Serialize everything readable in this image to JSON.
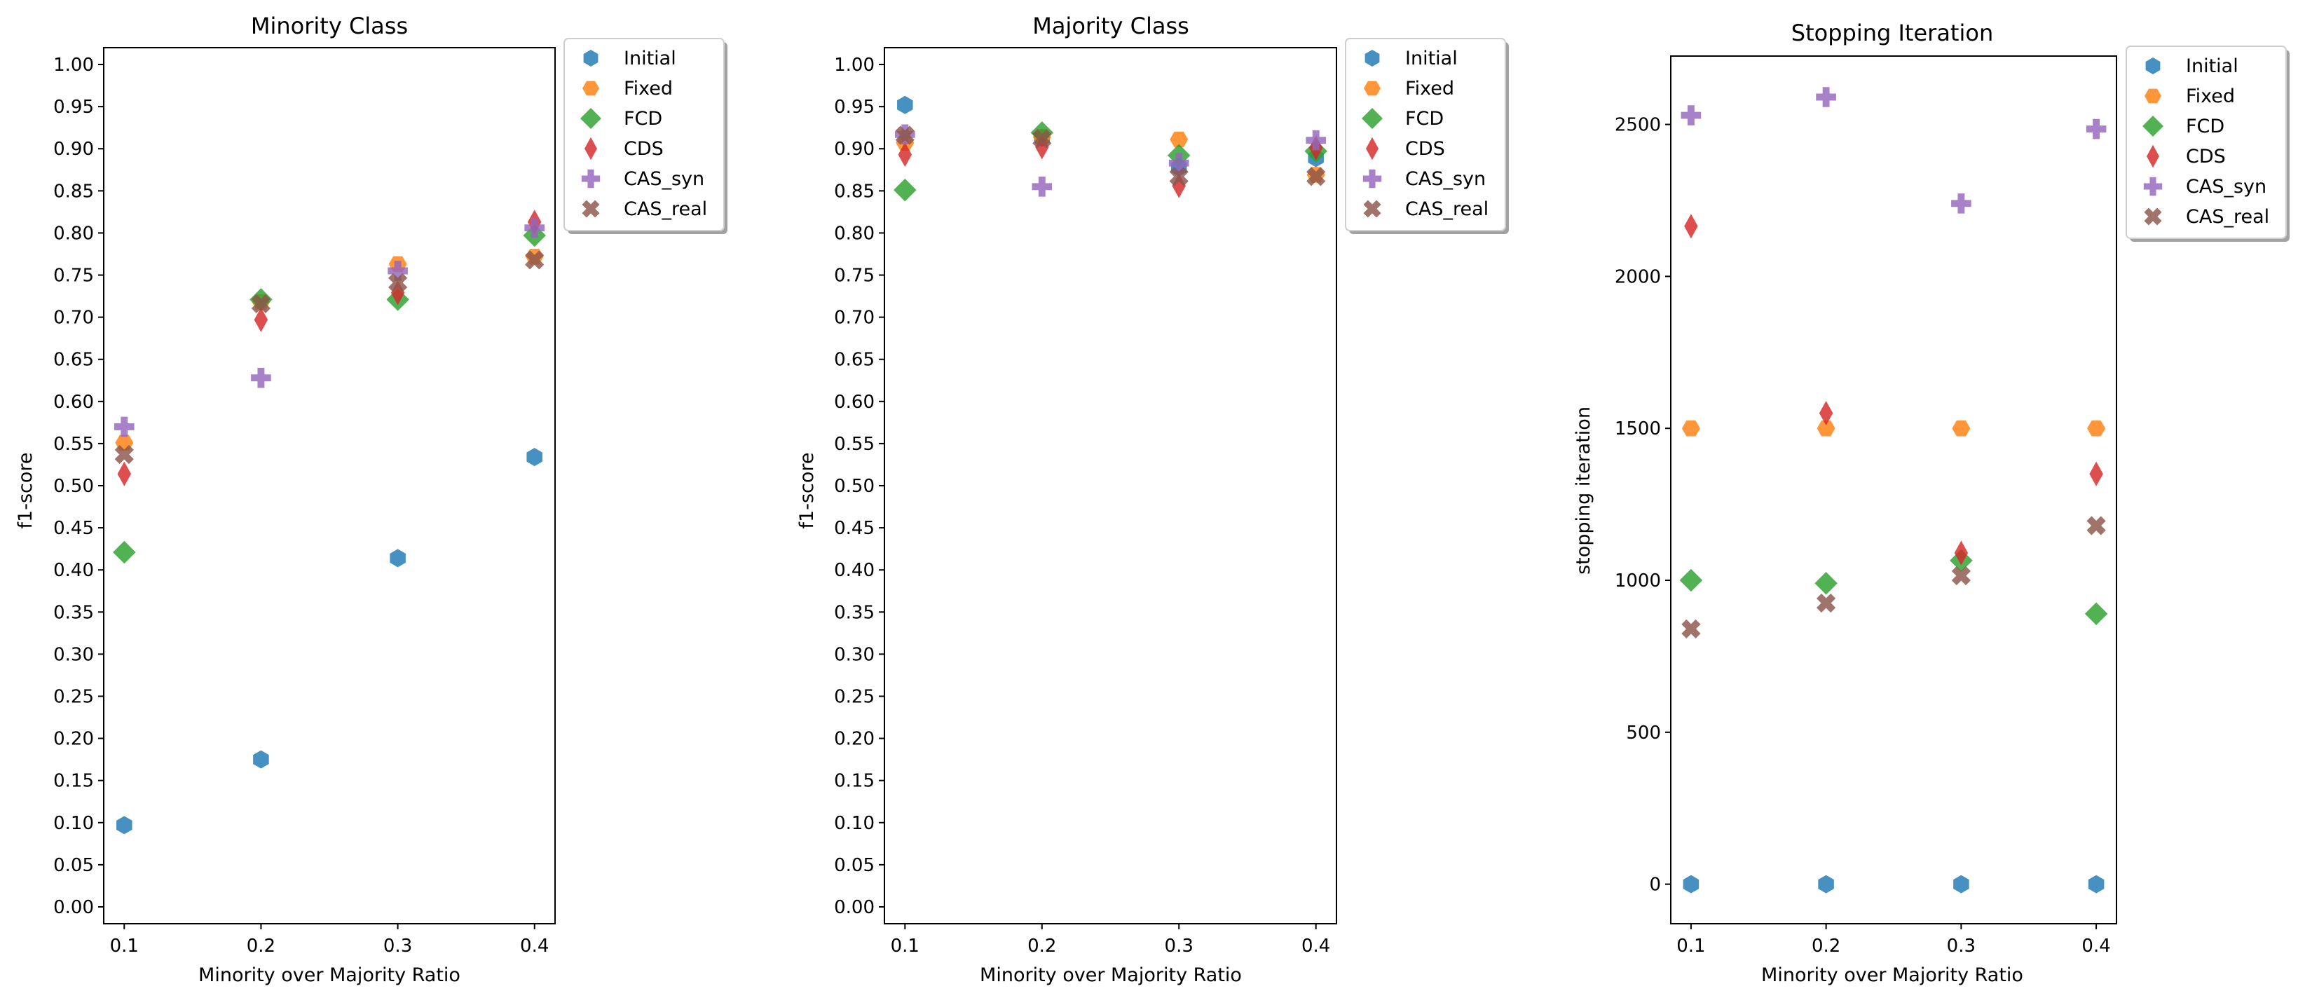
{
  "chart_data": [
    {
      "type": "scatter",
      "title": "Minority Class",
      "xlabel": "Minority over Majority Ratio",
      "ylabel": "f1-score",
      "x": [
        0.1,
        0.2,
        0.3,
        0.4
      ],
      "xlim": [
        0.085,
        0.415
      ],
      "ylim": [
        -0.02,
        1.02
      ],
      "xticks": [
        "0.1",
        "0.2",
        "0.3",
        "0.4"
      ],
      "yticks": [
        "0.00",
        "0.05",
        "0.10",
        "0.15",
        "0.20",
        "0.25",
        "0.30",
        "0.35",
        "0.40",
        "0.45",
        "0.50",
        "0.55",
        "0.60",
        "0.65",
        "0.70",
        "0.75",
        "0.80",
        "0.85",
        "0.90",
        "0.95",
        "1.00"
      ],
      "legend_position": "outside-top-right",
      "series": [
        {
          "name": "Initial",
          "values": [
            0.097,
            0.175,
            0.414,
            0.534
          ]
        },
        {
          "name": "Fixed",
          "values": [
            0.551,
            0.718,
            0.763,
            0.772
          ]
        },
        {
          "name": "FCD",
          "values": [
            0.421,
            0.721,
            0.721,
            0.797
          ]
        },
        {
          "name": "CDS",
          "values": [
            0.514,
            0.697,
            0.729,
            0.813
          ]
        },
        {
          "name": "CAS_syn",
          "values": [
            0.57,
            0.628,
            0.755,
            0.806
          ]
        },
        {
          "name": "CAS_real",
          "values": [
            0.537,
            0.716,
            0.741,
            0.768
          ]
        }
      ]
    },
    {
      "type": "scatter",
      "title": "Majority Class",
      "xlabel": "Minority over Majority Ratio",
      "ylabel": "f1-score",
      "x": [
        0.1,
        0.2,
        0.3,
        0.4
      ],
      "xlim": [
        0.085,
        0.415
      ],
      "ylim": [
        -0.02,
        1.02
      ],
      "xticks": [
        "0.1",
        "0.2",
        "0.3",
        "0.4"
      ],
      "yticks": [
        "0.00",
        "0.05",
        "0.10",
        "0.15",
        "0.20",
        "0.25",
        "0.30",
        "0.35",
        "0.40",
        "0.45",
        "0.50",
        "0.55",
        "0.60",
        "0.65",
        "0.70",
        "0.75",
        "0.80",
        "0.85",
        "0.90",
        "0.95",
        "1.00"
      ],
      "legend_position": "outside-top-right",
      "series": [
        {
          "name": "Initial",
          "values": [
            0.952,
            0.913,
            0.878,
            0.889
          ]
        },
        {
          "name": "Fixed",
          "values": [
            0.907,
            0.914,
            0.911,
            0.869
          ]
        },
        {
          "name": "FCD",
          "values": [
            0.851,
            0.919,
            0.892,
            0.897
          ]
        },
        {
          "name": "CDS",
          "values": [
            0.893,
            0.902,
            0.856,
            0.901
          ]
        },
        {
          "name": "CAS_syn",
          "values": [
            0.917,
            0.855,
            0.883,
            0.91
          ]
        },
        {
          "name": "CAS_real",
          "values": [
            0.916,
            0.912,
            0.867,
            0.867
          ]
        }
      ]
    },
    {
      "type": "scatter",
      "title": "Stopping Iteration",
      "xlabel": "Minority over Majority Ratio",
      "ylabel": "stopping iteration",
      "x": [
        0.1,
        0.2,
        0.3,
        0.4
      ],
      "xlim": [
        0.085,
        0.415
      ],
      "ylim": [
        -130,
        2725
      ],
      "xticks": [
        "0.1",
        "0.2",
        "0.3",
        "0.4"
      ],
      "yticks": [
        "0",
        "500",
        "1000",
        "1500",
        "2000",
        "2500"
      ],
      "legend_position": "outside-top-right",
      "series": [
        {
          "name": "Initial",
          "values": [
            0,
            0,
            0,
            0
          ]
        },
        {
          "name": "Fixed",
          "values": [
            1500,
            1500,
            1500,
            1500
          ]
        },
        {
          "name": "FCD",
          "values": [
            1000,
            990,
            1065,
            890
          ]
        },
        {
          "name": "CDS",
          "values": [
            2165,
            1550,
            1090,
            1350
          ]
        },
        {
          "name": "CAS_syn",
          "values": [
            2530,
            2590,
            2240,
            2485
          ]
        },
        {
          "name": "CAS_real",
          "values": [
            840,
            925,
            1015,
            1180
          ]
        }
      ]
    }
  ],
  "series_styles": [
    {
      "name": "Initial",
      "marker": "hexagon",
      "color": "#1f77b4"
    },
    {
      "name": "Fixed",
      "marker": "hexagon-flat",
      "color": "#ff7f0e"
    },
    {
      "name": "FCD",
      "marker": "diamond",
      "color": "#2ca02c"
    },
    {
      "name": "CDS",
      "marker": "thin-diamond",
      "color": "#d62728"
    },
    {
      "name": "CAS_syn",
      "marker": "plus-filled",
      "color": "#9467bd"
    },
    {
      "name": "CAS_real",
      "marker": "x-filled",
      "color": "#8c564b"
    }
  ]
}
